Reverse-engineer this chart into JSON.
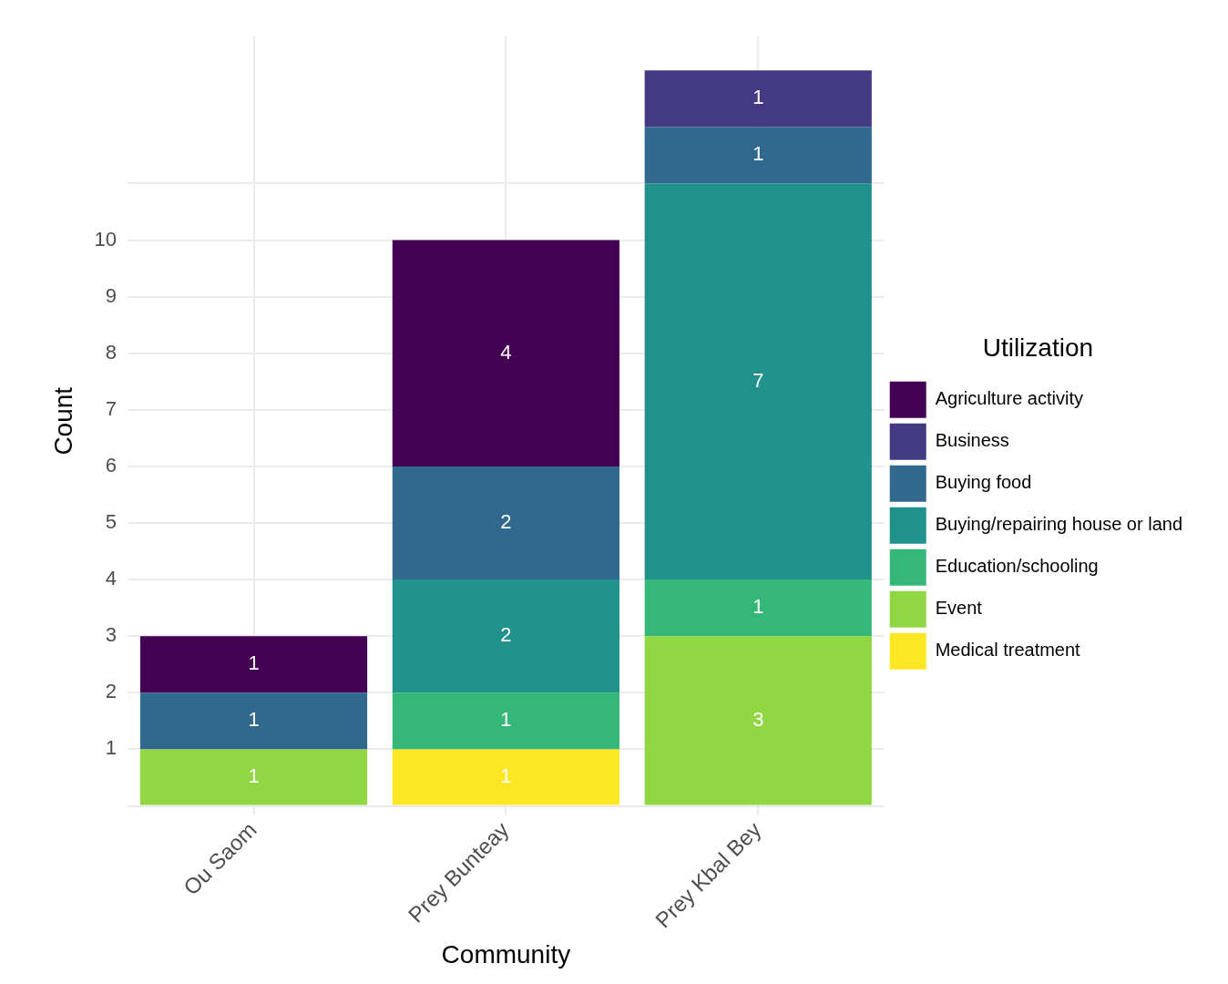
{
  "chart_data": {
    "type": "bar",
    "stacked": true,
    "xlabel": "Community",
    "ylabel": "Count",
    "legend_title": "Utilization",
    "categories": [
      "Ou Saom",
      "Prey Bunteay",
      "Prey Kbal Bey"
    ],
    "series": [
      {
        "name": "Medical treatment",
        "color": "#fde725",
        "values": [
          null,
          1,
          null
        ]
      },
      {
        "name": "Event",
        "color": "#90d743",
        "values": [
          1,
          null,
          3
        ]
      },
      {
        "name": "Education/schooling",
        "color": "#35b779",
        "values": [
          null,
          1,
          1
        ]
      },
      {
        "name": "Buying/repairing house or land",
        "color": "#21918c",
        "values": [
          null,
          2,
          7
        ]
      },
      {
        "name": "Buying food",
        "color": "#31688e",
        "values": [
          1,
          2,
          1
        ]
      },
      {
        "name": "Business",
        "color": "#443983",
        "values": [
          null,
          null,
          1
        ]
      },
      {
        "name": "Agriculture activity",
        "color": "#440154",
        "values": [
          1,
          4,
          null
        ]
      }
    ],
    "ylim": [
      0,
      13.6
    ],
    "yticks": [
      {
        "value": 0,
        "label": null
      },
      1,
      2,
      3,
      4,
      5,
      6,
      7,
      8,
      9,
      10,
      {
        "value": 11,
        "label": null
      }
    ],
    "grid": true,
    "legend": "right",
    "data_labels": true
  }
}
